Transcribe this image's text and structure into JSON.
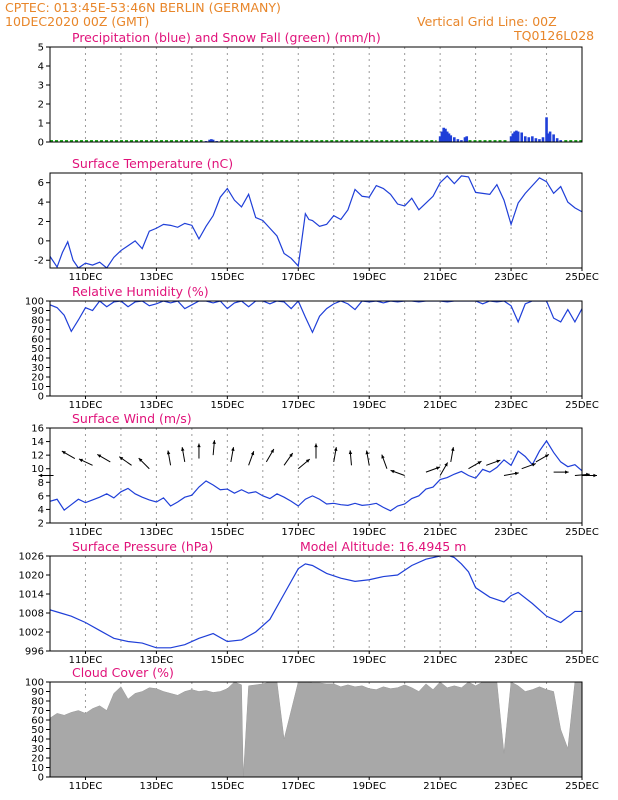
{
  "header": {
    "line1_left": "CPTEC:   013:45E-53:46N   BERLIN (GERMANY)",
    "line2_left": "10DEC2020 00Z (GMT)",
    "line2_right": "Vertical Grid Line: 00Z",
    "line3_right": "TQ0126L028"
  },
  "colors": {
    "blue": "#1f3fd8",
    "green": "#22aa22",
    "gray": "#a8a8a8",
    "title": "#e0127a",
    "header": "#e8862a"
  },
  "chart_data": [
    {
      "id": "precip",
      "type": "bar",
      "title": "Precipitation (blue) and Snow Fall (green) (mm/h)",
      "ylim": [
        0,
        5
      ],
      "yticks": [
        0,
        1,
        2,
        3,
        4,
        5
      ],
      "show_xticks": false,
      "series": [
        {
          "name": "Precipitation",
          "color": "#1f3fd8",
          "points": [
            [
              14.4,
              0.05
            ],
            [
              14.5,
              0.12
            ],
            [
              14.55,
              0.15
            ],
            [
              14.6,
              0.12
            ],
            [
              14.7,
              0.05
            ],
            [
              21.0,
              0.3
            ],
            [
              21.05,
              0.55
            ],
            [
              21.1,
              0.75
            ],
            [
              21.15,
              0.7
            ],
            [
              21.2,
              0.55
            ],
            [
              21.25,
              0.45
            ],
            [
              21.3,
              0.35
            ],
            [
              21.4,
              0.25
            ],
            [
              21.5,
              0.15
            ],
            [
              21.6,
              0.1
            ],
            [
              21.7,
              0.25
            ],
            [
              21.75,
              0.3
            ],
            [
              23.0,
              0.3
            ],
            [
              23.05,
              0.45
            ],
            [
              23.1,
              0.55
            ],
            [
              23.15,
              0.6
            ],
            [
              23.2,
              0.55
            ],
            [
              23.3,
              0.5
            ],
            [
              23.4,
              0.3
            ],
            [
              23.5,
              0.25
            ],
            [
              23.6,
              0.3
            ],
            [
              23.7,
              0.2
            ],
            [
              23.8,
              0.15
            ],
            [
              23.9,
              0.25
            ],
            [
              24.0,
              1.3
            ],
            [
              24.05,
              0.45
            ],
            [
              24.1,
              0.55
            ],
            [
              24.2,
              0.4
            ],
            [
              24.3,
              0.2
            ],
            [
              24.4,
              0.1
            ]
          ]
        },
        {
          "name": "Snow Fall",
          "color": "#22aa22",
          "segments": [
            [
              10.0,
              14.3
            ],
            [
              14.8,
              20.9
            ],
            [
              21.8,
              22.9
            ],
            [
              24.5,
              25.0
            ]
          ]
        }
      ]
    },
    {
      "id": "temp",
      "type": "line",
      "title": "Surface Temperature (nC)",
      "ylim": [
        -2.8,
        7
      ],
      "yticks": [
        -2,
        0,
        2,
        4,
        6
      ],
      "x": [
        10.0,
        10.2,
        10.35,
        10.5,
        10.65,
        10.8,
        11.0,
        11.2,
        11.4,
        11.6,
        11.8,
        12.0,
        12.2,
        12.4,
        12.6,
        12.8,
        13.0,
        13.2,
        13.4,
        13.6,
        13.8,
        14.0,
        14.2,
        14.4,
        14.6,
        14.8,
        15.0,
        15.2,
        15.4,
        15.6,
        15.8,
        16.0,
        16.2,
        16.4,
        16.6,
        16.8,
        17.0,
        17.2,
        17.3,
        17.4,
        17.6,
        17.8,
        18.0,
        18.2,
        18.4,
        18.6,
        18.8,
        19.0,
        19.2,
        19.4,
        19.6,
        19.8,
        20.0,
        20.2,
        20.4,
        20.6,
        20.8,
        21.0,
        21.2,
        21.4,
        21.6,
        21.8,
        22.0,
        22.2,
        22.4,
        22.6,
        22.8,
        23.0,
        23.2,
        23.4,
        23.6,
        23.8,
        24.0,
        24.2,
        24.4,
        24.6,
        24.8,
        25.0
      ],
      "y": [
        -1.6,
        -2.7,
        -1.2,
        -0.1,
        -2.0,
        -2.8,
        -2.3,
        -2.5,
        -2.2,
        -2.8,
        -1.7,
        -1.0,
        -0.5,
        0.0,
        -0.8,
        1.0,
        1.3,
        1.7,
        1.6,
        1.4,
        1.8,
        1.6,
        0.2,
        1.5,
        2.6,
        4.5,
        5.4,
        4.2,
        3.5,
        4.8,
        2.4,
        2.1,
        1.3,
        0.5,
        -1.3,
        -1.8,
        -2.6,
        2.8,
        2.2,
        2.1,
        1.5,
        1.7,
        2.6,
        2.2,
        3.2,
        5.3,
        4.6,
        4.5,
        5.7,
        5.4,
        4.8,
        3.8,
        3.6,
        4.4,
        3.2,
        3.9,
        4.6,
        6.0,
        6.7,
        5.9,
        6.7,
        6.6,
        5.0,
        4.9,
        4.8,
        5.8,
        4.2,
        1.7,
        3.9,
        4.9,
        5.7,
        6.5,
        6.1,
        4.9,
        5.6,
        4.0,
        3.4,
        3.0
      ]
    },
    {
      "id": "rh",
      "type": "line",
      "title": "Relative Humidity (%)",
      "ylim": [
        0,
        100
      ],
      "yticks": [
        0,
        10,
        20,
        30,
        40,
        50,
        60,
        70,
        80,
        90,
        100
      ],
      "x": [
        10.0,
        10.2,
        10.4,
        10.6,
        10.8,
        11.0,
        11.2,
        11.4,
        11.6,
        11.8,
        12.0,
        12.2,
        12.4,
        12.6,
        12.8,
        13.0,
        13.2,
        13.4,
        13.6,
        13.8,
        14.0,
        14.2,
        14.4,
        14.6,
        14.8,
        15.0,
        15.2,
        15.4,
        15.6,
        15.8,
        16.0,
        16.2,
        16.4,
        16.6,
        16.8,
        17.0,
        17.2,
        17.4,
        17.6,
        17.8,
        18.0,
        18.2,
        18.4,
        18.6,
        18.8,
        19.0,
        19.2,
        19.4,
        19.6,
        19.8,
        20.0,
        20.2,
        20.4,
        20.6,
        20.8,
        21.0,
        21.2,
        21.4,
        21.6,
        21.8,
        22.0,
        22.2,
        22.4,
        22.6,
        22.8,
        23.0,
        23.2,
        23.4,
        23.6,
        23.8,
        24.0,
        24.2,
        24.4,
        24.6,
        24.8,
        25.0
      ],
      "y": [
        96,
        93,
        85,
        68,
        80,
        93,
        90,
        100,
        94,
        99,
        100,
        94,
        99,
        100,
        95,
        97,
        100,
        98,
        100,
        92,
        96,
        100,
        100,
        98,
        100,
        92,
        98,
        100,
        94,
        100,
        100,
        97,
        100,
        99,
        92,
        100,
        83,
        67,
        84,
        92,
        97,
        100,
        97,
        91,
        100,
        99,
        100,
        98,
        100,
        99,
        100,
        100,
        99,
        100,
        100,
        100,
        99,
        100,
        100,
        100,
        100,
        97,
        100,
        99,
        100,
        95,
        78,
        97,
        100,
        100,
        100,
        82,
        78,
        91,
        78,
        92
      ]
    },
    {
      "id": "wind",
      "type": "line",
      "title": "Surface Wind (m/s)",
      "ylim": [
        2,
        16
      ],
      "yticks": [
        2,
        4,
        6,
        8,
        10,
        12,
        14,
        16
      ],
      "x": [
        10.0,
        10.2,
        10.4,
        10.6,
        10.8,
        11.0,
        11.2,
        11.4,
        11.6,
        11.8,
        12.0,
        12.2,
        12.4,
        12.6,
        12.8,
        13.0,
        13.2,
        13.4,
        13.6,
        13.8,
        14.0,
        14.2,
        14.4,
        14.6,
        14.8,
        15.0,
        15.2,
        15.4,
        15.6,
        15.8,
        16.0,
        16.2,
        16.4,
        16.6,
        16.8,
        17.0,
        17.2,
        17.4,
        17.6,
        17.8,
        18.0,
        18.2,
        18.4,
        18.6,
        18.8,
        19.0,
        19.2,
        19.4,
        19.6,
        19.8,
        20.0,
        20.2,
        20.4,
        20.6,
        20.8,
        21.0,
        21.2,
        21.4,
        21.6,
        21.8,
        22.0,
        22.2,
        22.4,
        22.6,
        22.8,
        23.0,
        23.2,
        23.4,
        23.6,
        23.8,
        24.0,
        24.2,
        24.4,
        24.6,
        24.8,
        25.0
      ],
      "y": [
        5.2,
        5.5,
        3.9,
        4.7,
        5.5,
        5.0,
        5.4,
        5.8,
        6.3,
        5.7,
        6.6,
        7.1,
        6.3,
        5.8,
        5.4,
        5.1,
        5.7,
        4.5,
        5.1,
        5.8,
        6.1,
        7.3,
        8.2,
        7.6,
        6.9,
        7.0,
        6.4,
        6.9,
        6.4,
        6.6,
        6.0,
        5.6,
        6.3,
        5.8,
        5.2,
        4.5,
        5.5,
        6.0,
        5.5,
        4.8,
        4.9,
        4.7,
        4.6,
        4.9,
        4.6,
        4.7,
        4.9,
        4.3,
        3.8,
        4.5,
        4.8,
        5.6,
        6.0,
        7.0,
        7.3,
        8.4,
        8.7,
        9.2,
        9.6,
        9.0,
        8.6,
        9.9,
        9.5,
        10.2,
        11.3,
        10.5,
        12.6,
        11.8,
        10.6,
        12.6,
        14.1,
        12.4,
        11.0,
        10.3,
        10.6,
        9.7
      ],
      "arrows_y": 9,
      "arrows": [
        [
          10.1,
          9,
          180
        ],
        [
          10.7,
          11.5,
          150
        ],
        [
          11.2,
          10.5,
          155
        ],
        [
          11.7,
          11,
          150
        ],
        [
          12.3,
          10.5,
          145
        ],
        [
          12.8,
          10,
          135
        ],
        [
          13.4,
          10.5,
          100
        ],
        [
          13.8,
          11,
          100
        ],
        [
          14.2,
          11.5,
          90
        ],
        [
          14.6,
          12,
          85
        ],
        [
          15.1,
          11,
          80
        ],
        [
          15.6,
          10.5,
          70
        ],
        [
          16.1,
          11,
          60
        ],
        [
          16.6,
          10.5,
          55
        ],
        [
          17.0,
          10,
          40
        ],
        [
          17.5,
          11.5,
          90
        ],
        [
          18.0,
          11,
          80
        ],
        [
          18.5,
          10.5,
          95
        ],
        [
          19.0,
          10.5,
          100
        ],
        [
          19.5,
          10,
          110
        ],
        [
          20.0,
          9,
          160
        ],
        [
          20.6,
          9.5,
          20
        ],
        [
          21.0,
          9,
          60
        ],
        [
          21.3,
          11,
          80
        ],
        [
          21.8,
          10,
          30
        ],
        [
          22.3,
          10.5,
          20
        ],
        [
          22.8,
          9,
          10
        ],
        [
          23.3,
          10,
          20
        ],
        [
          23.7,
          11,
          30
        ],
        [
          24.2,
          9.5,
          0
        ],
        [
          24.8,
          9,
          5
        ],
        [
          25.0,
          9,
          0
        ]
      ]
    },
    {
      "id": "pressure",
      "type": "line",
      "title": "Surface Pressure (hPa)",
      "subtitle": "Model Altitude: 16.4945 m",
      "ylim": [
        996,
        1026
      ],
      "yticks": [
        996,
        1002,
        1008,
        1014,
        1020,
        1026
      ],
      "x": [
        10.0,
        10.3,
        10.6,
        11.0,
        11.4,
        11.8,
        12.2,
        12.6,
        13.0,
        13.4,
        13.8,
        14.2,
        14.6,
        15.0,
        15.4,
        15.8,
        16.2,
        16.6,
        17.0,
        17.2,
        17.4,
        17.8,
        18.2,
        18.6,
        19.0,
        19.4,
        19.8,
        20.2,
        20.6,
        21.0,
        21.2,
        21.4,
        21.6,
        21.8,
        22.0,
        22.4,
        22.8,
        23.0,
        23.2,
        23.6,
        24.0,
        24.4,
        24.8,
        25.0
      ],
      "y": [
        1009,
        1008,
        1007,
        1005,
        1002.5,
        1000,
        999,
        998.5,
        997,
        997,
        998,
        1000,
        1001.5,
        999,
        999.5,
        1002,
        1006,
        1014,
        1022,
        1023.5,
        1023,
        1020.5,
        1019,
        1018,
        1018.5,
        1019.5,
        1020,
        1023,
        1025,
        1026,
        1026.3,
        1025.5,
        1023.5,
        1021,
        1016,
        1013,
        1011.5,
        1013.5,
        1014.5,
        1011,
        1007,
        1005,
        1008.5,
        1008.5
      ]
    },
    {
      "id": "cloud",
      "type": "area",
      "title": "Cloud Cover (%)",
      "ylim": [
        0,
        100
      ],
      "yticks": [
        0,
        10,
        20,
        30,
        40,
        50,
        60,
        70,
        80,
        90,
        100
      ],
      "x": [
        10.0,
        10.2,
        10.4,
        10.6,
        10.8,
        11.0,
        11.2,
        11.4,
        11.6,
        11.8,
        12.0,
        12.2,
        12.4,
        12.6,
        12.8,
        13.0,
        13.2,
        13.4,
        13.6,
        13.8,
        14.0,
        14.2,
        14.4,
        14.6,
        14.8,
        15.0,
        15.2,
        15.4,
        15.45,
        15.6,
        15.8,
        16.0,
        16.2,
        16.4,
        16.6,
        16.8,
        17.0,
        17.2,
        17.4,
        17.6,
        17.8,
        18.0,
        18.2,
        18.4,
        18.6,
        18.8,
        19.0,
        19.2,
        19.4,
        19.6,
        19.8,
        20.0,
        20.2,
        20.4,
        20.6,
        20.8,
        21.0,
        21.2,
        21.4,
        21.6,
        21.8,
        22.0,
        22.2,
        22.4,
        22.6,
        22.8,
        23.0,
        23.2,
        23.4,
        23.6,
        23.8,
        24.0,
        24.2,
        24.4,
        24.6,
        24.8,
        25.0
      ],
      "y": [
        62,
        67,
        65,
        68,
        70,
        67,
        72,
        75,
        70,
        88,
        95,
        82,
        88,
        90,
        94,
        93,
        90,
        88,
        86,
        90,
        92,
        90,
        91,
        89,
        90,
        93,
        100,
        97,
        0,
        96,
        97,
        98,
        100,
        100,
        40,
        70,
        100,
        100,
        99,
        99,
        98,
        98,
        95,
        97,
        95,
        96,
        93,
        92,
        95,
        93,
        94,
        97,
        94,
        90,
        98,
        92,
        100,
        94,
        96,
        94,
        100,
        96,
        100,
        100,
        100,
        25,
        100,
        96,
        90,
        92,
        95,
        92,
        90,
        50,
        30,
        100,
        100
      ]
    }
  ],
  "xaxis": {
    "xlim": [
      10.0,
      25.0
    ],
    "tick_positions": [
      11,
      13,
      15,
      17,
      19,
      21,
      23,
      25
    ],
    "tick_labels": [
      "11DEC",
      "13DEC",
      "15DEC",
      "17DEC",
      "19DEC",
      "21DEC",
      "23DEC",
      "25DEC"
    ]
  }
}
